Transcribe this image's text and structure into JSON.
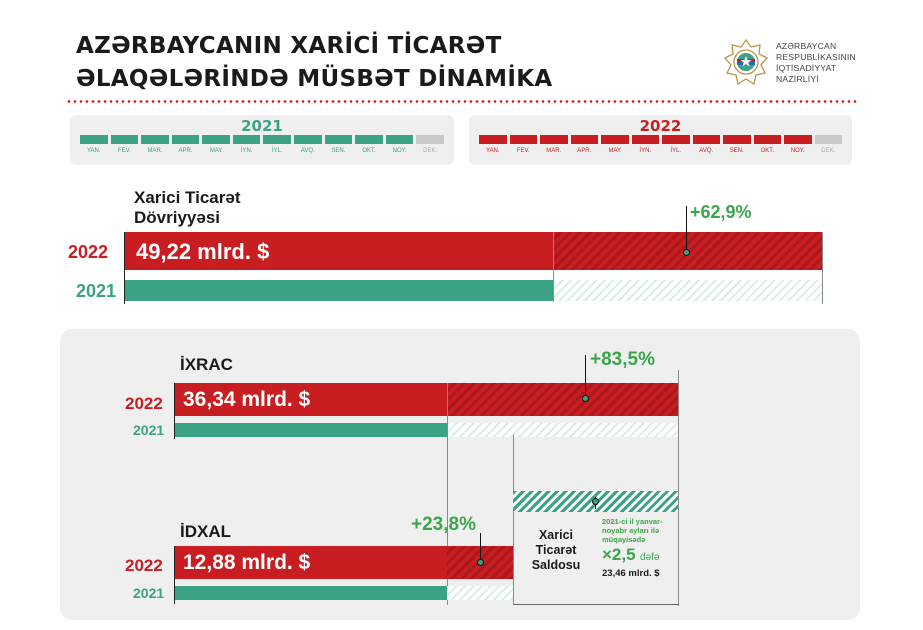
{
  "header": {
    "title_line1": "AZƏRBAYCANIN XARİCİ TİCARƏT",
    "title_line2": "ƏLAQƏLƏRİNDƏ MÜSBƏT DİNAMİKA",
    "ministry_line1": "AZƏRBAYCAN",
    "ministry_line2": "RESPUBLİKASININ",
    "ministry_line3": "İQTİSADİYYAT",
    "ministry_line4": "NAZİRLİYİ"
  },
  "timelines": {
    "y2021": {
      "year": "2021",
      "color": "#3ba286",
      "months": [
        "YAN.",
        "FEV.",
        "MAR.",
        "APR.",
        "MAY",
        "İYN.",
        "İYL.",
        "AVQ.",
        "SEN.",
        "OKT.",
        "NOY.",
        "DEK."
      ],
      "active_count": 11
    },
    "y2022": {
      "year": "2022",
      "color": "#c81e22",
      "months": [
        "YAN.",
        "FEV.",
        "MAR.",
        "APR.",
        "MAY",
        "İYN.",
        "İYL.",
        "AVQ.",
        "SEN.",
        "OKT.",
        "NOY.",
        "DEK."
      ],
      "active_count": 11
    }
  },
  "turnover": {
    "label_line1": "Xarici Ticarət",
    "label_line2": "Dövriyyəsi",
    "year_2022": "2022",
    "year_2021": "2021",
    "value_2022": "49,22 mlrd. $",
    "growth": "+62,9%"
  },
  "export": {
    "label": "İXRAC",
    "year_2022": "2022",
    "year_2021": "2021",
    "value_2022": "36,34 mlrd. $",
    "growth": "+83,5%"
  },
  "import": {
    "label": "İDXAL",
    "year_2022": "2022",
    "year_2021": "2021",
    "value_2022": "12,88 mlrd. $",
    "growth": "+23,8%"
  },
  "balance": {
    "title_line1": "Xarici",
    "title_line2": "Ticarət",
    "title_line3": "Saldosu",
    "note_line1": "2021-ci il yanvar-",
    "note_line2": "noyabr ayları ilə",
    "note_line3": "müqayisədə",
    "multiplier": "×2,5",
    "multiplier_unit": "dəfə",
    "value": "23,46 mlrd. $"
  },
  "colors": {
    "red": "#c81e22",
    "green": "#3ba286",
    "growth_green": "#3aa64a"
  }
}
